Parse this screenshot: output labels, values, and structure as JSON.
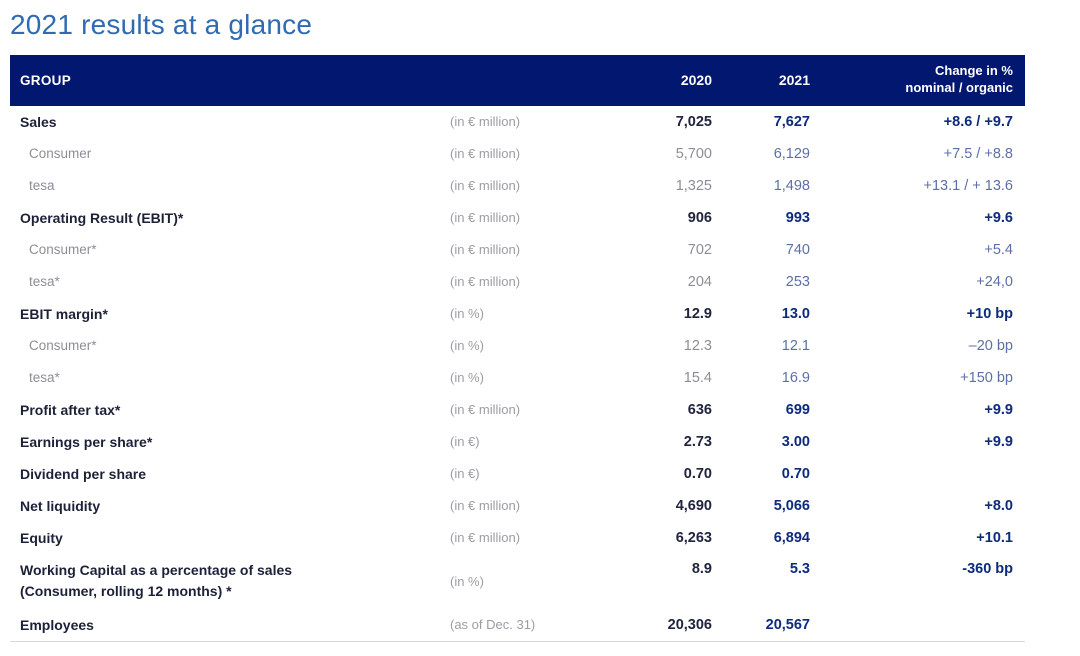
{
  "page": {
    "title": "2021 results at a glance"
  },
  "table": {
    "header": {
      "group": "GROUP",
      "col_2020": "2020",
      "col_2021": "2021",
      "change_line1": "Change in %",
      "change_line2": "nominal / organic"
    },
    "colors": {
      "header_background": "#021770",
      "header_text": "#ffffff",
      "title_blue": "#2f6bb2",
      "bold_navy_value": "#0c2b7d",
      "bold_dark_value": "#20243c",
      "sub_gray": "#8b8e96",
      "sub_slate_blue": "#5d6fa7",
      "unit_gray": "#9a9da5"
    },
    "rows": [
      {
        "label": "Sales",
        "label2": "",
        "unit": "(in € million)",
        "v2020": "7,025",
        "v2021": "7,627",
        "change": "+8.6 / +9.7",
        "type": "main",
        "tall": false
      },
      {
        "label": "Consumer",
        "label2": "",
        "unit": "(in € million)",
        "v2020": "5,700",
        "v2021": "6,129",
        "change": "+7.5 / +8.8",
        "type": "sub",
        "tall": false
      },
      {
        "label": "tesa",
        "label2": "",
        "unit": "(in € million)",
        "v2020": "1,325",
        "v2021": "1,498",
        "change": "+13.1 / + 13.6",
        "type": "sub",
        "tall": false
      },
      {
        "label": "Operating Result (EBIT)*",
        "label2": "",
        "unit": "(in € million)",
        "v2020": "906",
        "v2021": "993",
        "change": "+9.6",
        "type": "main",
        "tall": false
      },
      {
        "label": "Consumer*",
        "label2": "",
        "unit": "(in € million)",
        "v2020": "702",
        "v2021": "740",
        "change": "+5.4",
        "type": "sub",
        "tall": false
      },
      {
        "label": "tesa*",
        "label2": "",
        "unit": "(in € million)",
        "v2020": "204",
        "v2021": "253",
        "change": "+24,0",
        "type": "sub",
        "tall": false
      },
      {
        "label": "EBIT margin*",
        "label2": "",
        "unit": "(in %)",
        "v2020": "12.9",
        "v2021": "13.0",
        "change": "+10 bp",
        "type": "main",
        "tall": false
      },
      {
        "label": "Consumer*",
        "label2": "",
        "unit": "(in %)",
        "v2020": "12.3",
        "v2021": "12.1",
        "change": "–20 bp",
        "type": "sub",
        "tall": false
      },
      {
        "label": "tesa*",
        "label2": "",
        "unit": "(in %)",
        "v2020": "15.4",
        "v2021": "16.9",
        "change": "+150 bp",
        "type": "sub",
        "tall": false
      },
      {
        "label": "Profit after tax*",
        "label2": "",
        "unit": "(in € million)",
        "v2020": "636",
        "v2021": "699",
        "change": "+9.9",
        "type": "main",
        "tall": false
      },
      {
        "label": "Earnings per share*",
        "label2": "",
        "unit": "(in €)",
        "v2020": "2.73",
        "v2021": "3.00",
        "change": "+9.9",
        "type": "main",
        "tall": false
      },
      {
        "label": "Dividend per share",
        "label2": "",
        "unit": "(in €)",
        "v2020": "0.70",
        "v2021": "0.70",
        "change": "",
        "type": "main",
        "tall": false
      },
      {
        "label": "Net liquidity",
        "label2": "",
        "unit": "(in € million)",
        "v2020": "4,690",
        "v2021": "5,066",
        "change": "+8.0",
        "type": "main",
        "tall": false
      },
      {
        "label": "Equity",
        "label2": "",
        "unit": "(in € million)",
        "v2020": "6,263",
        "v2021": "6,894",
        "change": "+10.1",
        "type": "main",
        "tall": false
      },
      {
        "label": "Working Capital as a percentage of sales",
        "label2": "(Consumer, rolling 12 months) *",
        "unit": "(in %)",
        "v2020": "8.9",
        "v2021": "5.3",
        "change": "-360 bp",
        "type": "main",
        "tall": true
      },
      {
        "label": "Employees",
        "label2": "",
        "unit": "(as of Dec. 31)",
        "v2020": "20,306",
        "v2021": "20,567",
        "change": "",
        "type": "main",
        "tall": false
      }
    ]
  }
}
